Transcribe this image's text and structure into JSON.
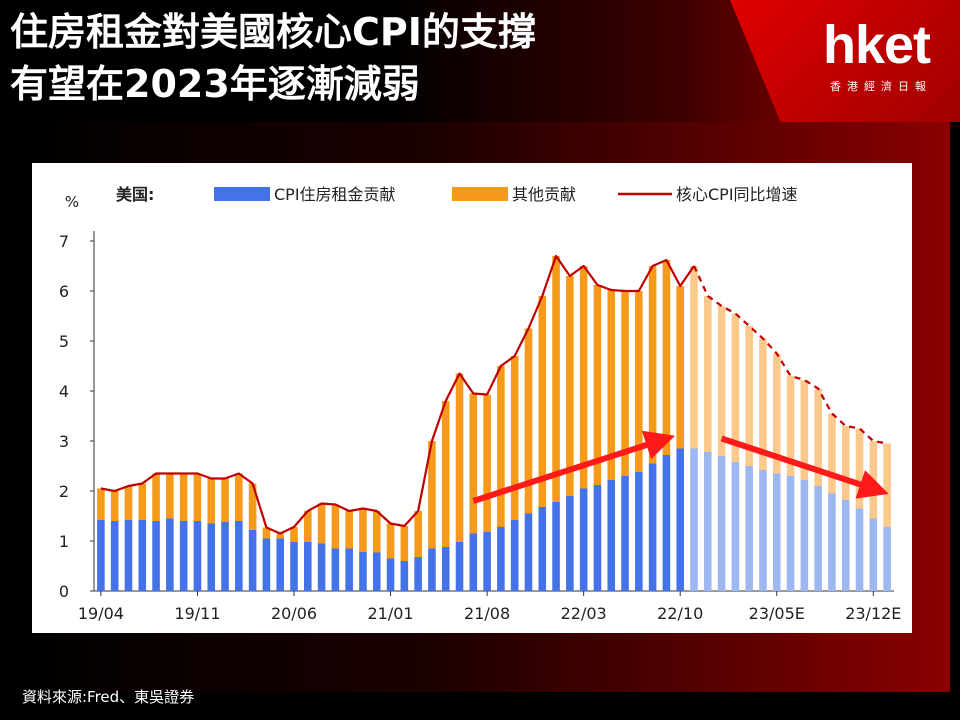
{
  "header": {
    "title_line1": "住房租金對美國核心CPI的支撐",
    "title_line2": "有望在2023年逐漸減弱",
    "brand": "hket",
    "brand_sub": "香港經濟日報"
  },
  "source": "資料來源:Fred、東吳證券",
  "chart_data": {
    "type": "bar",
    "unit": "%",
    "region_label": "美国:",
    "ylim": [
      0,
      7
    ],
    "yticks": [
      0,
      1,
      2,
      3,
      4,
      5,
      6,
      7
    ],
    "xtick_labels": [
      "19/04",
      "19/11",
      "20/06",
      "21/01",
      "21/08",
      "22/03",
      "22/10",
      "23/05E",
      "23/12E"
    ],
    "xtick_index": [
      0,
      7,
      14,
      21,
      28,
      35,
      42,
      49,
      56
    ],
    "series": [
      {
        "name": "CPI住房租金贡献",
        "color": "#4472e8",
        "color_forecast": "#9db8f0",
        "values": [
          1.42,
          1.4,
          1.42,
          1.42,
          1.4,
          1.45,
          1.4,
          1.4,
          1.35,
          1.38,
          1.4,
          1.22,
          1.05,
          1.05,
          0.98,
          0.98,
          0.95,
          0.85,
          0.85,
          0.78,
          0.77,
          0.65,
          0.6,
          0.68,
          0.85,
          0.88,
          0.98,
          1.15,
          1.18,
          1.28,
          1.42,
          1.55,
          1.68,
          1.78,
          1.9,
          2.05,
          2.12,
          2.22,
          2.3,
          2.38,
          2.55,
          2.72,
          2.85,
          2.85,
          2.78,
          2.7,
          2.58,
          2.5,
          2.42,
          2.35,
          2.3,
          2.22,
          2.1,
          1.95,
          1.82,
          1.65,
          1.45,
          1.28
        ]
      },
      {
        "name": "其他贡献",
        "color": "#f59a1b",
        "color_forecast": "#fbc98b",
        "values": [
          0.63,
          0.6,
          0.68,
          0.73,
          0.95,
          0.9,
          0.95,
          0.95,
          0.9,
          0.87,
          0.95,
          0.93,
          0.22,
          0.1,
          0.3,
          0.62,
          0.8,
          0.88,
          0.75,
          0.87,
          0.83,
          0.7,
          0.7,
          0.92,
          2.15,
          2.92,
          3.37,
          2.8,
          2.75,
          3.22,
          3.28,
          3.7,
          4.22,
          4.92,
          4.4,
          4.45,
          4.0,
          3.8,
          3.7,
          3.62,
          3.95,
          3.9,
          3.25,
          3.65,
          3.12,
          3.0,
          2.97,
          2.8,
          2.63,
          2.4,
          2.0,
          2.0,
          1.95,
          1.6,
          1.48,
          1.6,
          1.55,
          1.67
        ]
      },
      {
        "name": "核心CPI同比增速",
        "color": "#c00000",
        "values": [
          2.05,
          2.0,
          2.1,
          2.15,
          2.35,
          2.35,
          2.35,
          2.35,
          2.25,
          2.25,
          2.35,
          2.15,
          1.27,
          1.15,
          1.28,
          1.6,
          1.75,
          1.73,
          1.6,
          1.65,
          1.6,
          1.35,
          1.3,
          1.6,
          3.0,
          3.8,
          4.35,
          3.95,
          3.93,
          4.5,
          4.7,
          5.25,
          5.9,
          6.7,
          6.3,
          6.5,
          6.12,
          6.02,
          6.0,
          6.0,
          6.5,
          6.62,
          6.1,
          6.5,
          5.9,
          5.7,
          5.55,
          5.3,
          5.05,
          4.75,
          4.3,
          4.22,
          4.05,
          3.55,
          3.3,
          3.25,
          3.0,
          2.95
        ]
      }
    ],
    "forecast_from_index": 43,
    "grid": false
  }
}
